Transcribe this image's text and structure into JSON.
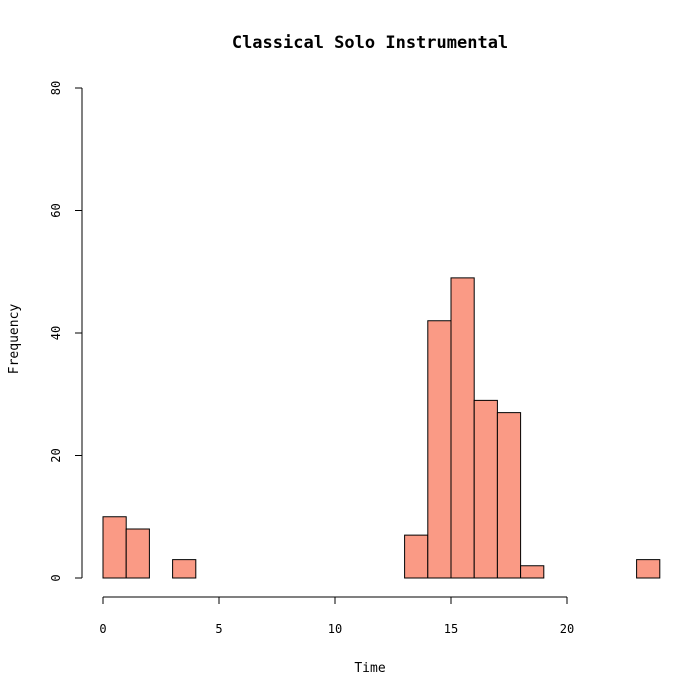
{
  "chart_data": {
    "type": "bar",
    "subtype": "histogram",
    "title": "Classical Solo Instrumental",
    "xlabel": "Time",
    "ylabel": "Frequency",
    "bin_width": 1,
    "bins": [
      {
        "x0": 0,
        "x1": 1,
        "count": 10
      },
      {
        "x0": 1,
        "x1": 2,
        "count": 8
      },
      {
        "x0": 2,
        "x1": 3,
        "count": 0
      },
      {
        "x0": 3,
        "x1": 4,
        "count": 3
      },
      {
        "x0": 4,
        "x1": 5,
        "count": 0
      },
      {
        "x0": 5,
        "x1": 6,
        "count": 0
      },
      {
        "x0": 6,
        "x1": 7,
        "count": 0
      },
      {
        "x0": 7,
        "x1": 8,
        "count": 0
      },
      {
        "x0": 8,
        "x1": 9,
        "count": 0
      },
      {
        "x0": 9,
        "x1": 10,
        "count": 0
      },
      {
        "x0": 10,
        "x1": 11,
        "count": 0
      },
      {
        "x0": 11,
        "x1": 12,
        "count": 0
      },
      {
        "x0": 12,
        "x1": 13,
        "count": 0
      },
      {
        "x0": 13,
        "x1": 14,
        "count": 7
      },
      {
        "x0": 14,
        "x1": 15,
        "count": 42
      },
      {
        "x0": 15,
        "x1": 16,
        "count": 49
      },
      {
        "x0": 16,
        "x1": 17,
        "count": 29
      },
      {
        "x0": 17,
        "x1": 18,
        "count": 27
      },
      {
        "x0": 18,
        "x1": 19,
        "count": 2
      },
      {
        "x0": 19,
        "x1": 20,
        "count": 0
      },
      {
        "x0": 20,
        "x1": 21,
        "count": 0
      },
      {
        "x0": 21,
        "x1": 22,
        "count": 0
      },
      {
        "x0": 22,
        "x1": 23,
        "count": 0
      },
      {
        "x0": 23,
        "x1": 24,
        "count": 3
      }
    ],
    "xlim": [
      0,
      24
    ],
    "ylim": [
      0,
      80
    ],
    "x_ticks": [
      0,
      5,
      10,
      15,
      20
    ],
    "y_ticks": [
      0,
      20,
      40,
      60,
      80
    ],
    "bar_color": "#fa9a85",
    "bar_edge_color": "#000000",
    "grid": false,
    "legend": "none"
  }
}
